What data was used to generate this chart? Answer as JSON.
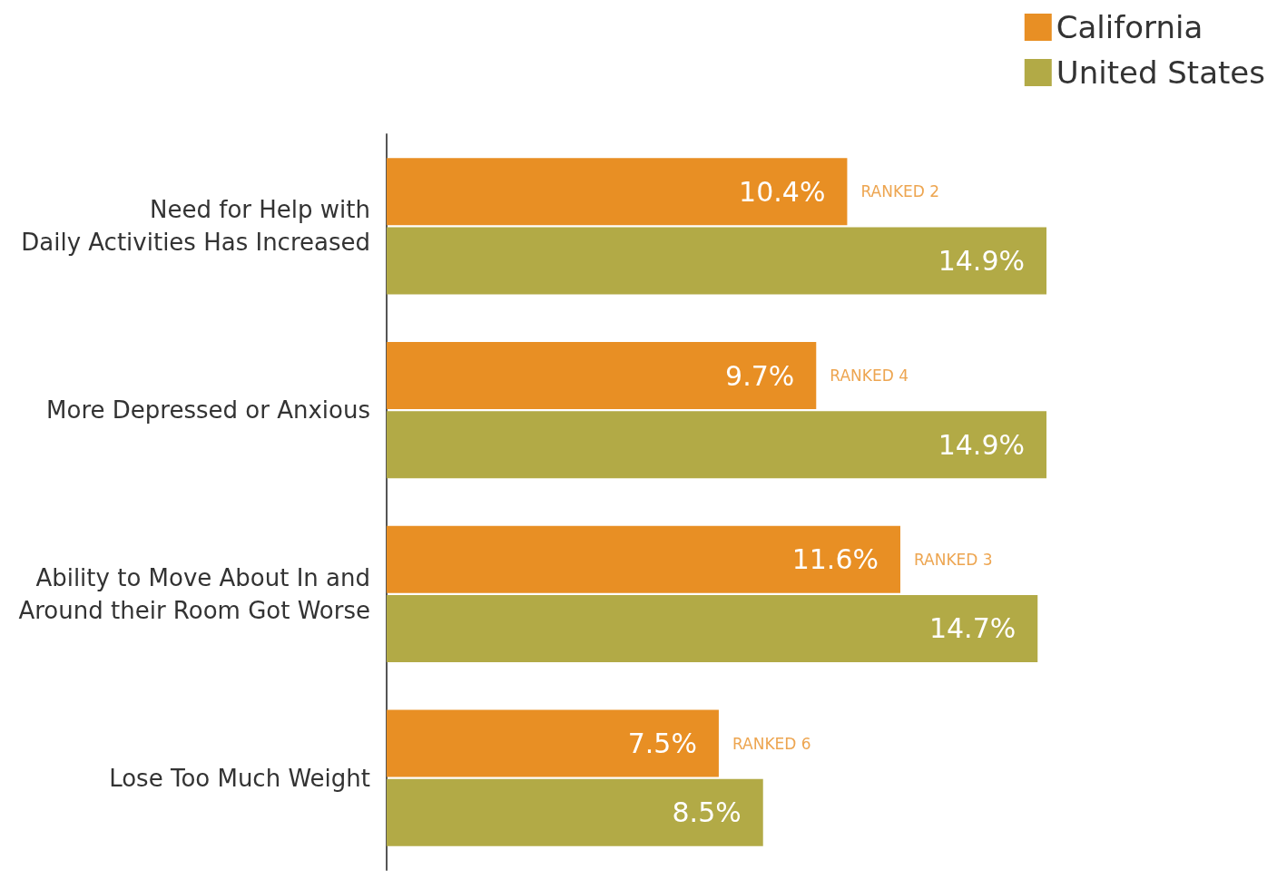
{
  "chart_data": {
    "type": "bar",
    "orientation": "horizontal",
    "categories": [
      "Need for Help with\nDaily Activities Has Increased",
      "More Depressed or Anxious",
      "Ability to Move About In and\nAround their Room Got Worse",
      "Lose Too Much Weight"
    ],
    "series": [
      {
        "name": "California",
        "color": "#e88f24",
        "values": [
          10.4,
          9.7,
          11.6,
          7.5
        ],
        "value_labels": [
          "10.4%",
          "9.7%",
          "11.6%",
          "7.5%"
        ]
      },
      {
        "name": "United States",
        "color": "#b2aa46",
        "values": [
          14.9,
          14.9,
          14.7,
          8.5
        ],
        "value_labels": [
          "14.9%",
          "14.9%",
          "14.7%",
          "8.5%"
        ]
      }
    ],
    "annotations": [
      {
        "text": "RANKED 2",
        "x": 10.4,
        "y": "Need for Help with\nDaily Activities Has Increased"
      },
      {
        "text": "RANKED 4",
        "x": 9.7,
        "y": "More Depressed or Anxious"
      },
      {
        "text": "RANKED 3",
        "x": 11.6,
        "y": "Ability to Move About In and\nAround their Room Got Worse"
      },
      {
        "text": "RANKED 6",
        "x": 7.5,
        "y": "Lose Too Much Weight"
      }
    ],
    "tick_labels": "y",
    "legend": "top right"
  }
}
